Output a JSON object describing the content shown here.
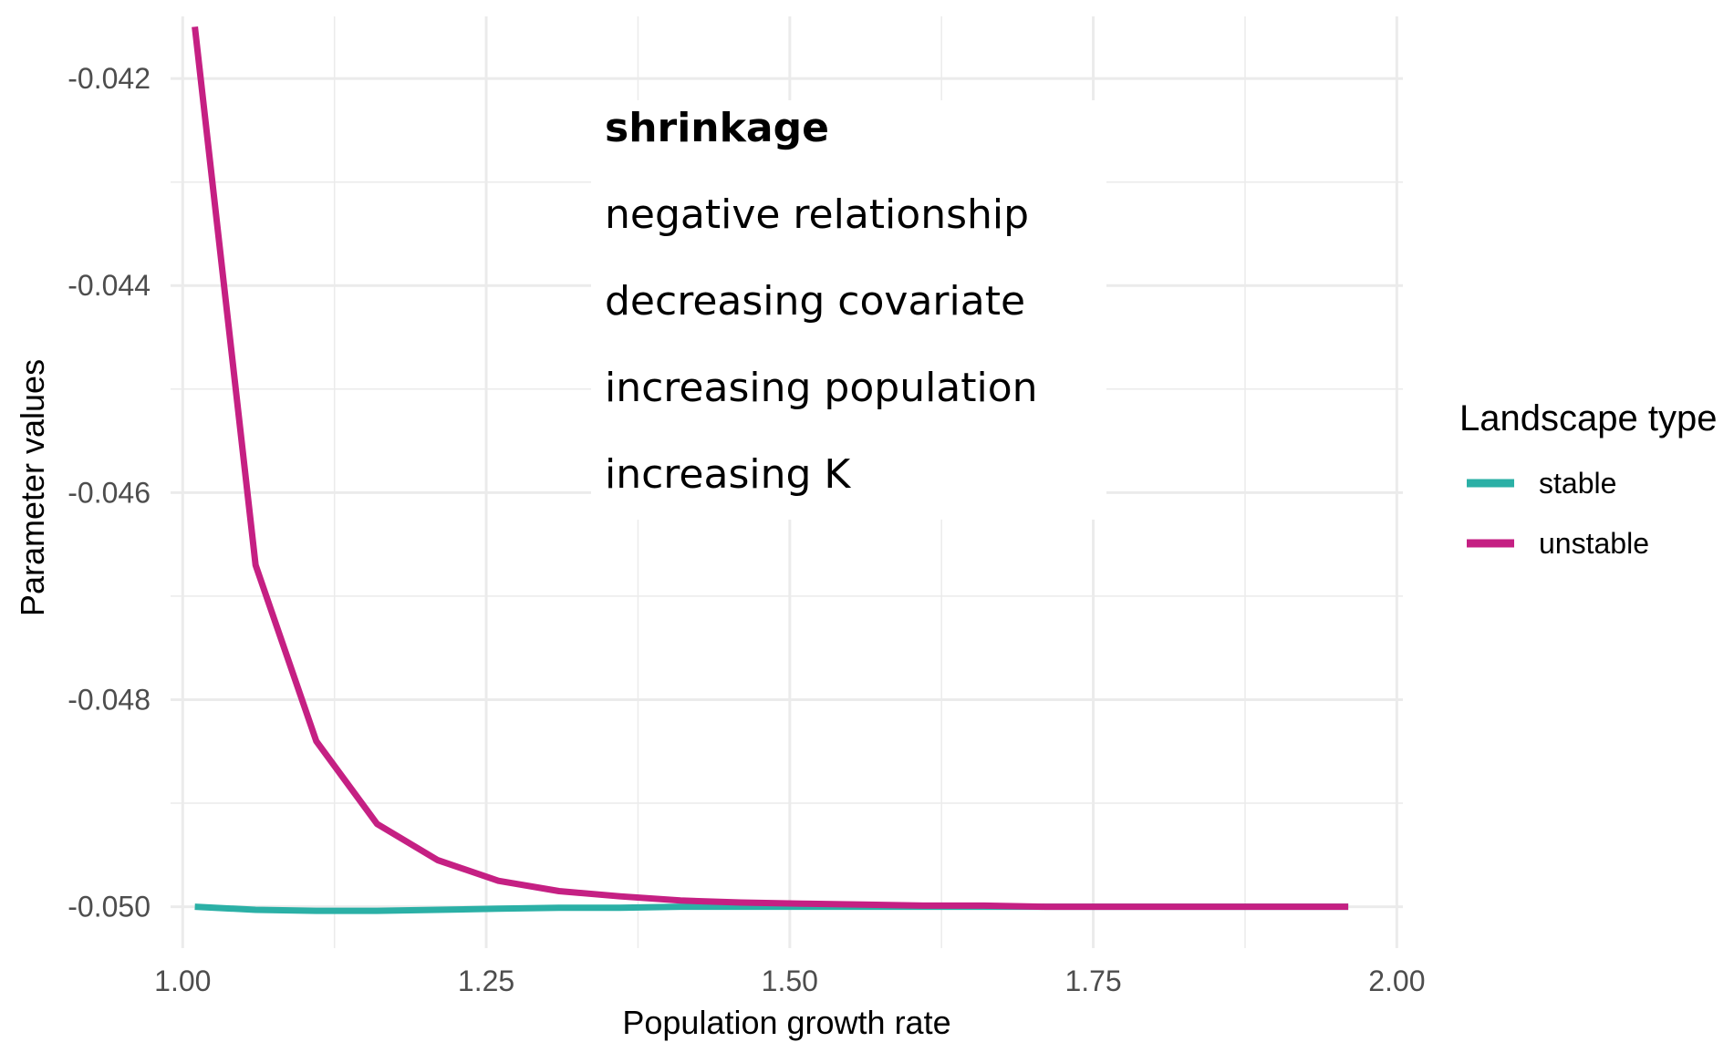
{
  "chart_data": {
    "type": "line",
    "xlabel": "Population growth rate",
    "ylabel": "Parameter values",
    "xlim": [
      0.99,
      2.005
    ],
    "ylim": [
      -0.0504,
      -0.0414
    ],
    "x_ticks": [
      1.0,
      1.25,
      1.5,
      1.75,
      2.0
    ],
    "x_tick_labels": [
      "1.00",
      "1.25",
      "1.50",
      "1.75",
      "2.00"
    ],
    "y_ticks": [
      -0.042,
      -0.044,
      -0.046,
      -0.048,
      -0.05
    ],
    "y_tick_labels": [
      "-0.042",
      "-0.044",
      "-0.046",
      "-0.048",
      "-0.050"
    ],
    "grid": true,
    "legend": {
      "title": "Landscape type",
      "placement": "right"
    },
    "x": [
      1.01,
      1.06,
      1.11,
      1.16,
      1.21,
      1.26,
      1.31,
      1.36,
      1.41,
      1.46,
      1.51,
      1.56,
      1.61,
      1.66,
      1.71,
      1.76,
      1.81,
      1.86,
      1.91,
      1.96
    ],
    "series": [
      {
        "name": "stable",
        "color": "#2BB0A6",
        "values": [
          -0.05,
          -0.05003,
          -0.05004,
          -0.05004,
          -0.05003,
          -0.05002,
          -0.05001,
          -0.05001,
          -0.05,
          -0.05,
          -0.05,
          -0.05,
          -0.05,
          -0.05,
          -0.05,
          -0.05,
          -0.05,
          -0.05,
          -0.05,
          -0.05
        ]
      },
      {
        "name": "unstable",
        "color": "#C52083",
        "values": [
          -0.0415,
          -0.0467,
          -0.0484,
          -0.0492,
          -0.04955,
          -0.04975,
          -0.04985,
          -0.0499,
          -0.04994,
          -0.04996,
          -0.04997,
          -0.04998,
          -0.04999,
          -0.04999,
          -0.05,
          -0.05,
          -0.05,
          -0.05,
          -0.05,
          -0.05
        ]
      }
    ],
    "annotations": [
      {
        "text": "shrinkage",
        "color": "#FF0000",
        "bold": true
      },
      {
        "text": "negative relationship",
        "color": "#000000",
        "bold": false
      },
      {
        "text": "decreasing covariate",
        "color": "#000000",
        "bold": false
      },
      {
        "text": "increasing population",
        "color": "#000000",
        "bold": false
      },
      {
        "text": "increasing K",
        "color": "#000000",
        "bold": false
      }
    ]
  }
}
